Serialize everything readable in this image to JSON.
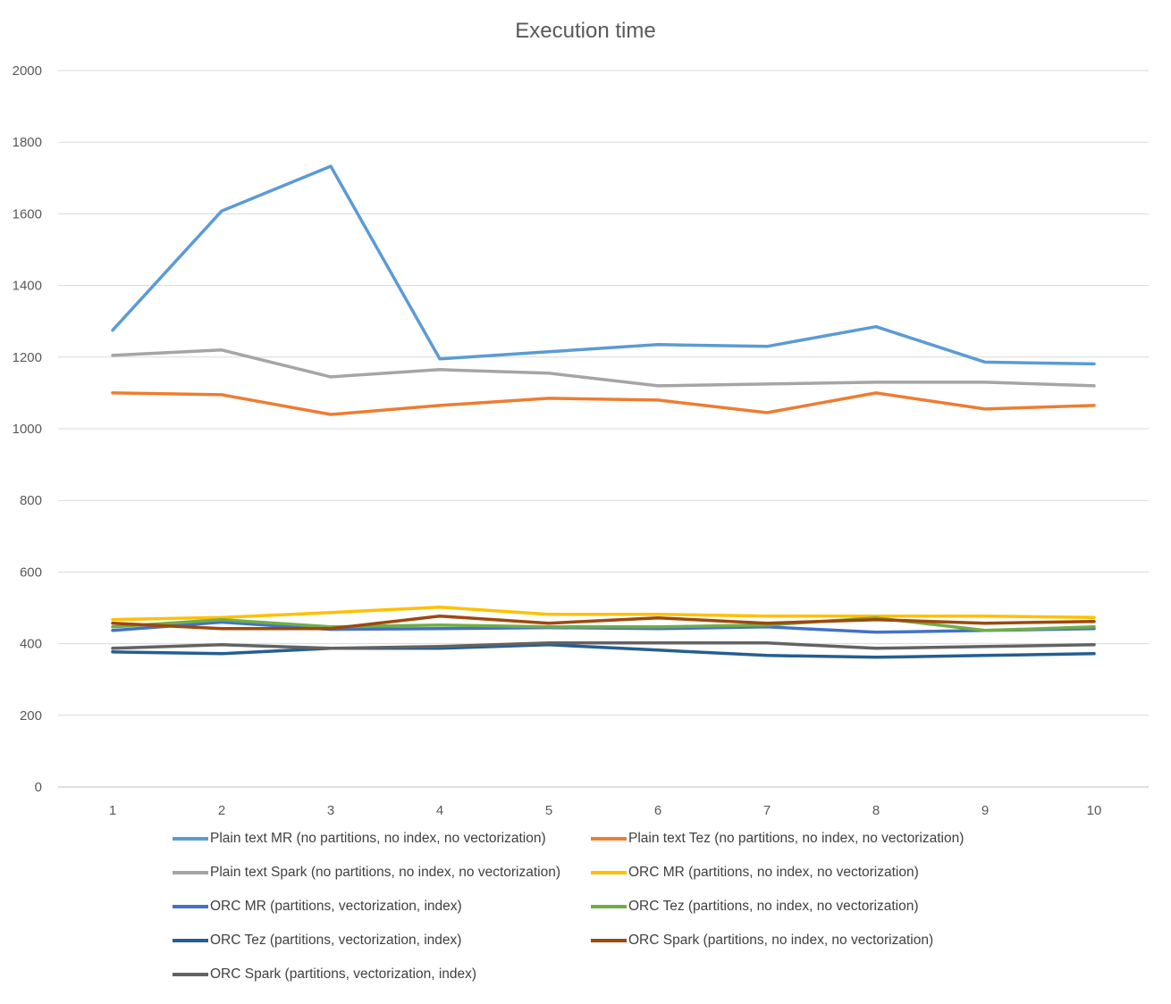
{
  "chart_data": {
    "type": "line",
    "title": "Execution time",
    "xlabel": "",
    "ylabel": "",
    "x": [
      1,
      2,
      3,
      4,
      5,
      6,
      7,
      8,
      9,
      10
    ],
    "ylim": [
      0,
      2000
    ],
    "yticks": [
      0,
      200,
      400,
      600,
      800,
      1000,
      1200,
      1400,
      1600,
      1800,
      2000
    ],
    "grid": true,
    "legend": "bottom",
    "series": [
      {
        "name": "Plain text MR (no partitions, no index, no vectorization)",
        "color": "#5b9bd5",
        "values": [
          1275,
          1608,
          1733,
          1195,
          1215,
          1235,
          1230,
          1285,
          1186,
          1181
        ]
      },
      {
        "name": "Plain text Tez (no partitions, no index, no vectorization)",
        "color": "#ed7d31",
        "values": [
          1100,
          1095,
          1040,
          1065,
          1085,
          1080,
          1045,
          1100,
          1055,
          1065
        ]
      },
      {
        "name": "Plain text Spark (no partitions, no index, no vectorization)",
        "color": "#a5a5a5",
        "values": [
          1205,
          1220,
          1145,
          1165,
          1155,
          1120,
          1125,
          1130,
          1130,
          1120
        ]
      },
      {
        "name": "ORC MR (partitions, no index, no vectorization)",
        "color": "#ffc000",
        "values": [
          467,
          473,
          487,
          502,
          482,
          482,
          477,
          477,
          477,
          473
        ]
      },
      {
        "name": "ORC MR (partitions, vectorization, index)",
        "color": "#4472c4",
        "values": [
          437,
          460,
          440,
          442,
          445,
          442,
          447,
          432,
          437,
          442
        ]
      },
      {
        "name": "ORC Tez (partitions, no index, no vectorization)",
        "color": "#70ad47",
        "values": [
          447,
          467,
          447,
          452,
          447,
          447,
          452,
          472,
          437,
          447
        ]
      },
      {
        "name": "ORC Tez (partitions, vectorization, index)",
        "color": "#255e91",
        "values": [
          377,
          372,
          387,
          387,
          397,
          382,
          367,
          362,
          367,
          372
        ]
      },
      {
        "name": "ORC Spark (partitions, no index, no vectorization)",
        "color": "#9e480e",
        "values": [
          457,
          442,
          442,
          477,
          457,
          472,
          457,
          467,
          457,
          462
        ]
      },
      {
        "name": "ORC Spark (partitions, vectorization, index)",
        "color": "#636363",
        "values": [
          387,
          397,
          387,
          392,
          402,
          402,
          402,
          387,
          392,
          397
        ]
      }
    ]
  }
}
